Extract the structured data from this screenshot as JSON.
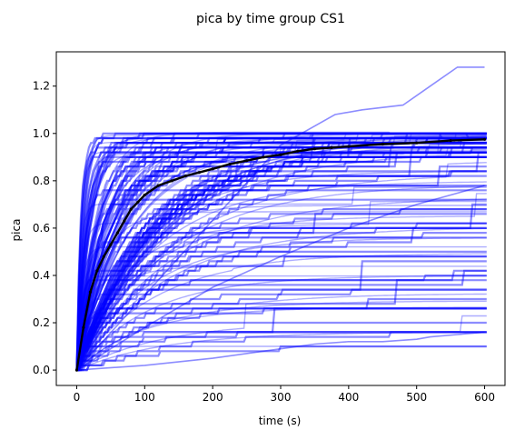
{
  "chart_data": {
    "type": "line",
    "title": "pica by time group CS1",
    "xlabel": "time (s)",
    "ylabel": "pica",
    "xlim": [
      -30,
      630
    ],
    "ylim": [
      -0.065,
      1.345
    ],
    "xticks": [
      0,
      100,
      200,
      300,
      400,
      500,
      600
    ],
    "yticks": [
      0.0,
      0.2,
      0.4,
      0.6,
      0.8,
      1.0,
      1.2
    ],
    "grid": false,
    "series_colors": {
      "individual": "#0000ff",
      "mean": "#000000"
    },
    "mean_curve": {
      "x": [
        0,
        10,
        20,
        30,
        40,
        50,
        60,
        70,
        80,
        90,
        100,
        120,
        140,
        160,
        180,
        200,
        225,
        250,
        275,
        300,
        325,
        350,
        375,
        400,
        450,
        500,
        550,
        600
      ],
      "y": [
        0.0,
        0.18,
        0.33,
        0.42,
        0.48,
        0.53,
        0.58,
        0.63,
        0.68,
        0.71,
        0.74,
        0.78,
        0.8,
        0.82,
        0.835,
        0.85,
        0.87,
        0.885,
        0.9,
        0.91,
        0.925,
        0.935,
        0.94,
        0.945,
        0.955,
        0.96,
        0.97,
        0.975
      ]
    },
    "individual_curves_summary": {
      "count_estimate": 150,
      "plateau_values": [
        1.0,
        0.98,
        0.97,
        0.96,
        0.95,
        0.93,
        0.9,
        0.88,
        0.85,
        0.84,
        0.8,
        0.78,
        0.74,
        0.7,
        0.66,
        0.62,
        0.6,
        0.56,
        0.52,
        0.48,
        0.44,
        0.4,
        0.36,
        0.3,
        0.26,
        0.2,
        0.16,
        0.1
      ],
      "outliers": [
        {
          "x": [
            0,
            100,
            200,
            300,
            350,
            400,
            450,
            500,
            520,
            560,
            600
          ],
          "y": [
            0.0,
            0.02,
            0.05,
            0.09,
            0.11,
            0.12,
            0.12,
            0.13,
            0.14,
            0.15,
            0.16
          ]
        },
        {
          "x": [
            0,
            100,
            200,
            300,
            400,
            500,
            600
          ],
          "y": [
            0.0,
            0.18,
            0.35,
            0.48,
            0.6,
            0.7,
            0.78
          ]
        },
        {
          "x": [
            0,
            300,
            380,
            420,
            480,
            520,
            560,
            600
          ],
          "y": [
            0.0,
            0.95,
            1.08,
            1.1,
            1.12,
            1.2,
            1.28,
            1.28
          ]
        }
      ]
    }
  }
}
